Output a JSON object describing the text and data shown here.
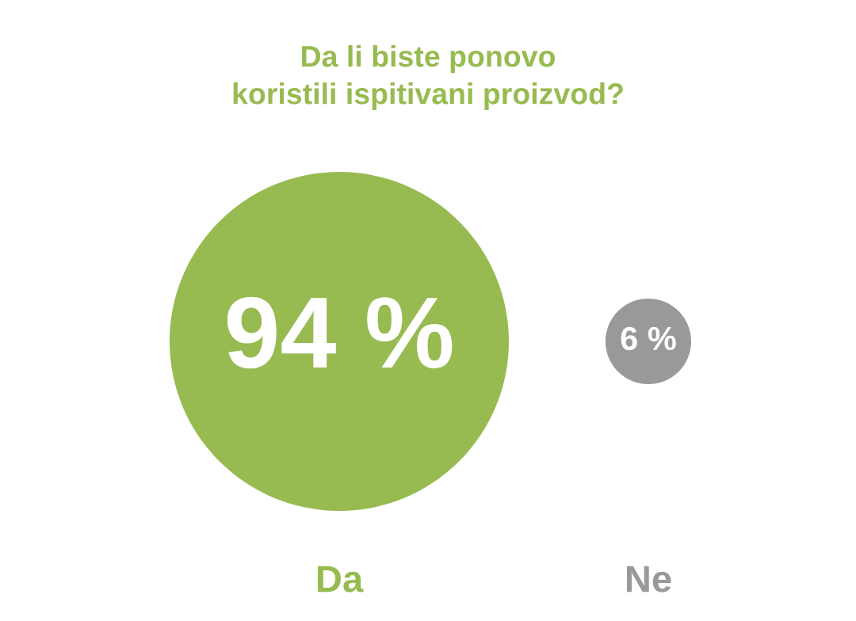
{
  "chart_data": {
    "type": "other",
    "title": "Da li biste ponovo\nkoristili ispitivani proizvod?",
    "categories": [
      "Da",
      "Ne"
    ],
    "values": [
      94,
      6
    ],
    "value_labels": [
      "94 %",
      "6 %"
    ],
    "colors": [
      "#97bb50",
      "#999999"
    ]
  }
}
